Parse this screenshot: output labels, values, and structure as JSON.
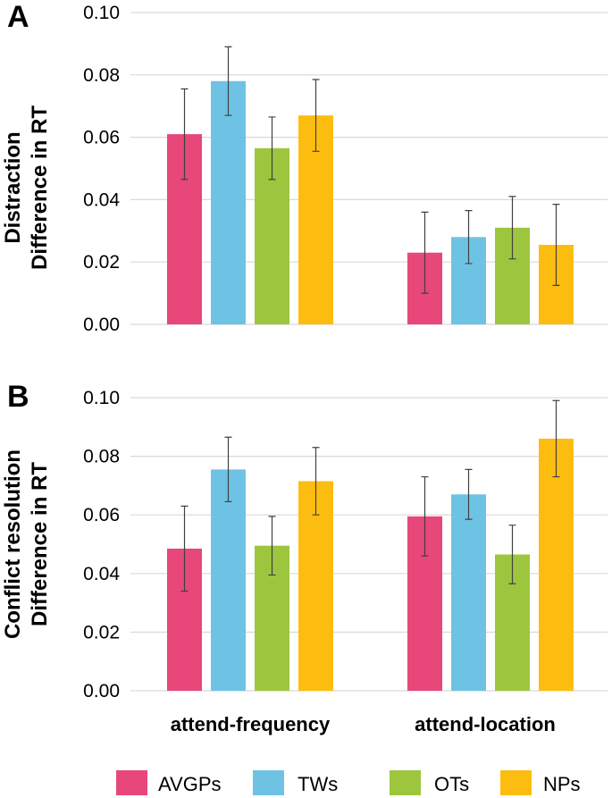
{
  "colors": {
    "AVGPs": "#e8477a",
    "TWs": "#6ec3e4",
    "OTs": "#9dc63e",
    "NPs": "#fdbd10"
  },
  "legend": [
    "AVGPs",
    "TWs",
    "OTs",
    "NPs"
  ],
  "categories": [
    "attend-frequency",
    "attend-location"
  ],
  "chart_data": [
    {
      "type": "bar",
      "panel": "A",
      "ylabel_line1": "Distraction",
      "ylabel_line2": "Difference in RT",
      "ylim": [
        0,
        0.1
      ],
      "yticks": [
        "0.00",
        "0.02",
        "0.04",
        "0.06",
        "0.08",
        "0.10"
      ],
      "grid": true,
      "categories": [
        "attend-frequency",
        "attend-location"
      ],
      "series": [
        {
          "name": "AVGPs",
          "values": [
            0.061,
            0.023
          ],
          "err": [
            0.0145,
            0.013
          ]
        },
        {
          "name": "TWs",
          "values": [
            0.078,
            0.028
          ],
          "err": [
            0.011,
            0.0085
          ]
        },
        {
          "name": "OTs",
          "values": [
            0.0565,
            0.031
          ],
          "err": [
            0.01,
            0.01
          ]
        },
        {
          "name": "NPs",
          "values": [
            0.067,
            0.0255
          ],
          "err": [
            0.0115,
            0.013
          ]
        }
      ]
    },
    {
      "type": "bar",
      "panel": "B",
      "ylabel_line1": "Conflict resolution",
      "ylabel_line2": "Difference in RT",
      "ylim": [
        0,
        0.1
      ],
      "yticks": [
        "0.00",
        "0.02",
        "0.04",
        "0.06",
        "0.08",
        "0.10"
      ],
      "grid": true,
      "categories": [
        "attend-frequency",
        "attend-location"
      ],
      "series": [
        {
          "name": "AVGPs",
          "values": [
            0.0485,
            0.0595
          ],
          "err": [
            0.0145,
            0.0135
          ]
        },
        {
          "name": "TWs",
          "values": [
            0.0755,
            0.067
          ],
          "err": [
            0.011,
            0.0085
          ]
        },
        {
          "name": "OTs",
          "values": [
            0.0495,
            0.0465
          ],
          "err": [
            0.01,
            0.01
          ]
        },
        {
          "name": "NPs",
          "values": [
            0.0715,
            0.086
          ],
          "err": [
            0.0115,
            0.013
          ]
        }
      ]
    }
  ]
}
